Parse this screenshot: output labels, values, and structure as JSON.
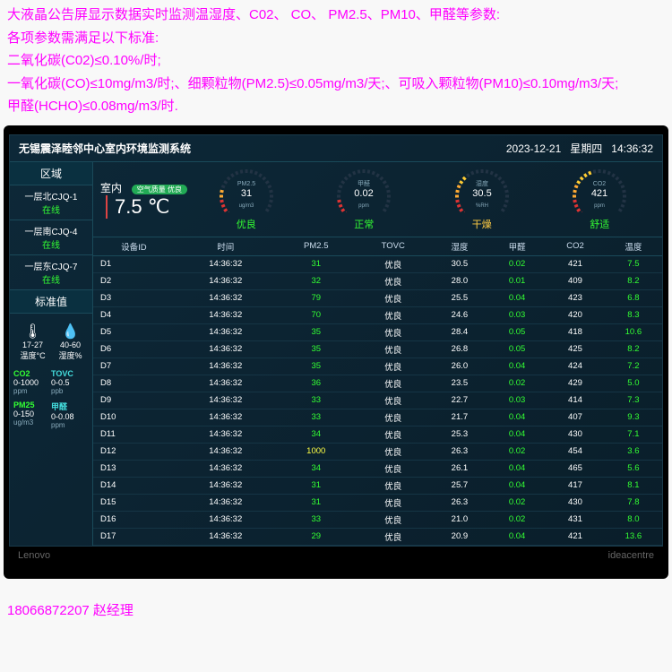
{
  "desc": {
    "l1": "大液晶公告屏显示数据实时监测温湿度、C02、 CO、 PM2.5、PM10、甲醛等参数:",
    "l2": "各项参数需满足以下标准:",
    "l3": "二氧化碳(C02)≤0.10%/时;",
    "l4": "一氧化碳(CO)≤10mg/m3/时;、细颗粒物(PM2.5)≤0.05mg/m3/天;、可吸入颗粒物(PM10)≤0.10mg/m3/天;",
    "l5": "甲醛(HCHO)≤0.08mg/m3/时."
  },
  "header": {
    "title": "无锡震泽睦邻中心室内环境监测系统",
    "date": "2023-12-21",
    "weekday": "星期四",
    "time": "14:36:32"
  },
  "sidebar": {
    "zones_title": "区域",
    "zones": [
      {
        "name": "一层北CJQ-1",
        "status": "在线"
      },
      {
        "name": "一层南CJQ-4",
        "status": "在线"
      },
      {
        "name": "一层东CJQ-7",
        "status": "在线"
      }
    ],
    "std_title": "标准值",
    "std_temp": {
      "range": "17-27",
      "label": "温度°C"
    },
    "std_hum": {
      "range": "40-60",
      "label": "湿度%"
    },
    "std_items": [
      {
        "name": "CO2",
        "range": "0-1000",
        "unit": "ppm",
        "color": "green"
      },
      {
        "name": "TOVC",
        "range": "0-0.5",
        "unit": "ppb",
        "color": "cyan"
      },
      {
        "name": "PM25",
        "range": "0-150",
        "unit": "ug/m3",
        "color": "green"
      },
      {
        "name": "甲醛",
        "range": "0-0.08",
        "unit": "ppm",
        "color": "cyan"
      }
    ]
  },
  "room": {
    "label": "室内",
    "badge": "空气质量 优良",
    "temp": "7.5 ℃"
  },
  "gauges": [
    {
      "name": "PM2.5",
      "val": "31",
      "unit": "ug/m3",
      "status": "优良",
      "frac": 0.25
    },
    {
      "name": "甲醛",
      "val": "0.02",
      "unit": "ppm",
      "status": "正常",
      "frac": 0.15
    },
    {
      "name": "湿度",
      "val": "30.5",
      "unit": "%RH",
      "status": "干燥",
      "frac": 0.35,
      "statColor": "#fc4"
    },
    {
      "name": "CO2",
      "val": "421",
      "unit": "ppm",
      "status": "舒适",
      "frac": 0.42
    }
  ],
  "table": {
    "headers": [
      "设备ID",
      "时间",
      "PM2.5",
      "TOVC",
      "湿度",
      "甲醛",
      "CO2",
      "温度"
    ],
    "rows": [
      [
        "D1",
        "14:36:32",
        "31",
        "优良",
        "30.5",
        "0.02",
        "421",
        "7.5"
      ],
      [
        "D2",
        "14:36:32",
        "32",
        "优良",
        "28.0",
        "0.01",
        "409",
        "8.2"
      ],
      [
        "D3",
        "14:36:32",
        "79",
        "优良",
        "25.5",
        "0.04",
        "423",
        "6.8"
      ],
      [
        "D4",
        "14:36:32",
        "70",
        "优良",
        "24.6",
        "0.03",
        "420",
        "8.3"
      ],
      [
        "D5",
        "14:36:32",
        "35",
        "优良",
        "28.4",
        "0.05",
        "418",
        "10.6"
      ],
      [
        "D6",
        "14:36:32",
        "35",
        "优良",
        "26.8",
        "0.05",
        "425",
        "8.2"
      ],
      [
        "D7",
        "14:36:32",
        "35",
        "优良",
        "26.0",
        "0.04",
        "424",
        "7.2"
      ],
      [
        "D8",
        "14:36:32",
        "36",
        "优良",
        "23.5",
        "0.02",
        "429",
        "5.0"
      ],
      [
        "D9",
        "14:36:32",
        "33",
        "优良",
        "22.7",
        "0.03",
        "414",
        "7.3"
      ],
      [
        "D10",
        "14:36:32",
        "33",
        "优良",
        "21.7",
        "0.04",
        "407",
        "9.3"
      ],
      [
        "D11",
        "14:36:32",
        "34",
        "优良",
        "25.3",
        "0.04",
        "430",
        "7.1"
      ],
      [
        "D12",
        "14:36:32",
        "1000",
        "优良",
        "26.3",
        "0.02",
        "454",
        "3.6"
      ],
      [
        "D13",
        "14:36:32",
        "34",
        "优良",
        "26.1",
        "0.04",
        "465",
        "5.6"
      ],
      [
        "D14",
        "14:36:32",
        "31",
        "优良",
        "25.7",
        "0.04",
        "417",
        "8.1"
      ],
      [
        "D15",
        "14:36:32",
        "31",
        "优良",
        "26.3",
        "0.02",
        "430",
        "7.8"
      ],
      [
        "D16",
        "14:36:32",
        "33",
        "优良",
        "21.0",
        "0.02",
        "431",
        "8.0"
      ],
      [
        "D17",
        "14:36:32",
        "29",
        "优良",
        "20.9",
        "0.04",
        "421",
        "13.6"
      ]
    ],
    "greenCols": [
      2,
      5,
      7
    ],
    "yellowCell": {
      "row": 11,
      "col": 2
    }
  },
  "brand": {
    "left": "Lenovo",
    "right": "ideacentre"
  },
  "contact": "18066872207 赵经理",
  "colors": {
    "gaugeTicks": [
      "#d33",
      "#fa3",
      "#fc3",
      "#cd3",
      "#8d3",
      "#4d4",
      "#3c6"
    ]
  }
}
